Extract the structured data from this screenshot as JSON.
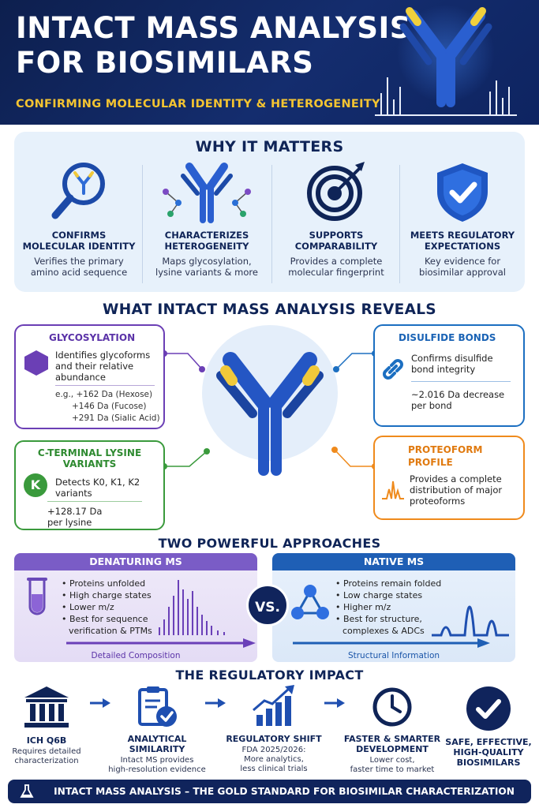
{
  "header": {
    "title_line1": "INTACT MASS ANALYSIS",
    "title_line2": "FOR BIOSIMILARS",
    "subtitle": "CONFIRMING MOLECULAR IDENTITY & HETEROGENEITY",
    "icon": "antibody-spectrum-icon"
  },
  "why": {
    "title": "WHY IT MATTERS",
    "items": [
      {
        "h1": "CONFIRMS",
        "h2": "MOLECULAR IDENTITY",
        "d1": "Verifies the primary",
        "d2": "amino acid sequence",
        "icon": "magnifier-antibody-icon"
      },
      {
        "h1": "CHARACTERIZES",
        "h2": "HETEROGENEITY",
        "d1": "Maps glycosylation,",
        "d2": "lysine variants & more",
        "icon": "antibody-glycan-icon"
      },
      {
        "h1": "SUPPORTS",
        "h2": "COMPARABILITY",
        "d1": "Provides a complete",
        "d2": "molecular fingerprint",
        "icon": "target-icon"
      },
      {
        "h1": "MEETS REGULATORY",
        "h2": "EXPECTATIONS",
        "d1": "Key evidence for",
        "d2": "biosimilar approval",
        "icon": "shield-check-icon"
      }
    ]
  },
  "reveals": {
    "title": "WHAT INTACT MASS ANALYSIS REVEALS",
    "glyco": {
      "title": "GLYCOSYLATION",
      "l1": "Identifies glycoforms",
      "l2": "and their relative",
      "l3": "abundance",
      "e1": "e.g., +162 Da (Hexose)",
      "e2": "+146 Da (Fucose)",
      "e3": "+291 Da (Sialic Acid)",
      "color": "#6b3fb5"
    },
    "lysine": {
      "title1": "C-TERMINAL LYSINE",
      "title2": "VARIANTS",
      "badge": "K",
      "l1": "Detects K0, K1, K2",
      "l2": "variants",
      "m1": "+128.17 Da",
      "m2": "per lysine",
      "color": "#3a9a3c"
    },
    "disulfide": {
      "title": "DISULFIDE BONDS",
      "l1": "Confirms disulfide",
      "l2": "bond integrity",
      "m1": "~2.016 Da decrease",
      "m2": "per bond",
      "color": "#1c6fc1"
    },
    "proteoform": {
      "title1": "PROTEOFORM",
      "title2": "PROFILE",
      "l1": "Provides a complete",
      "l2": "distribution of major",
      "l3": "proteoforms",
      "color": "#ef8a1c"
    }
  },
  "approaches": {
    "title": "TWO POWERFUL APPROACHES",
    "vs": "VS.",
    "denaturing": {
      "title": "DENATURING MS",
      "items": [
        "Proteins unfolded",
        "High charge states",
        "Lower m/z",
        "Best for sequence",
        "verification & PTMs"
      ],
      "footer": "Detailed Composition",
      "color": "#7a5cc6"
    },
    "native": {
      "title": "NATIVE MS",
      "items": [
        "Proteins remain folded",
        "Low charge states",
        "Higher m/z",
        "Best for structure,",
        "complexes & ADCs"
      ],
      "footer": "Structural Information",
      "color": "#1f5fb5"
    }
  },
  "regulatory": {
    "title": "THE REGULATORY IMPACT",
    "steps": [
      {
        "h1": "ICH Q6B",
        "h2": "",
        "d1": "Requires detailed",
        "d2": "characterization",
        "icon": "building-icon"
      },
      {
        "h1": "ANALYTICAL",
        "h2": "SIMILARITY",
        "d1": "Intact MS provides",
        "d2": "high-resolution evidence",
        "icon": "clipboard-check-icon"
      },
      {
        "h1": "REGULATORY SHIFT",
        "h2": "",
        "d1": "FDA 2025/2026:",
        "d2": "More analytics,",
        "d3": "less clinical trials",
        "icon": "bar-chart-icon"
      },
      {
        "h1": "FASTER & SMARTER",
        "h2": "DEVELOPMENT",
        "d1": "Lower cost,",
        "d2": "faster time to market",
        "icon": "clock-icon"
      },
      {
        "h1": "SAFE, EFFECTIVE,",
        "h2": "HIGH-QUALITY",
        "h3": "BIOSIMILARS",
        "icon": "check-circle-icon"
      }
    ]
  },
  "footer": {
    "text": "INTACT MASS ANALYSIS – THE GOLD STANDARD FOR BIOSIMILAR CHARACTERIZATION",
    "icon": "flask-icon"
  }
}
